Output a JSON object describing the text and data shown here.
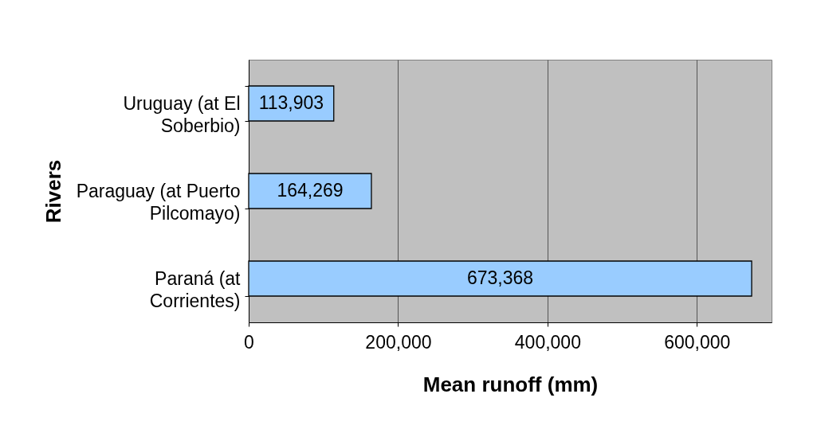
{
  "chart_data": {
    "type": "bar",
    "orientation": "horizontal",
    "categories": [
      "Uruguay (at El Soberbio)",
      "Paraguay (at Puerto Pilcomayo)",
      "Paraná (at Corrientes)"
    ],
    "values": [
      113903,
      164269,
      673368
    ],
    "value_labels": [
      "113,903",
      "164,269",
      "673,368"
    ],
    "color": "#99ccff",
    "xlim": [
      0,
      700000
    ],
    "xticks": [
      0,
      {
        "value": 200000,
        "label": "200,000"
      },
      {
        "value": 400000,
        "label": "400,000"
      },
      {
        "value": 600000,
        "label": "600,000"
      }
    ],
    "xlabel": "Mean runoff (mm)",
    "ylabel": "Rivers",
    "grid": "x"
  }
}
